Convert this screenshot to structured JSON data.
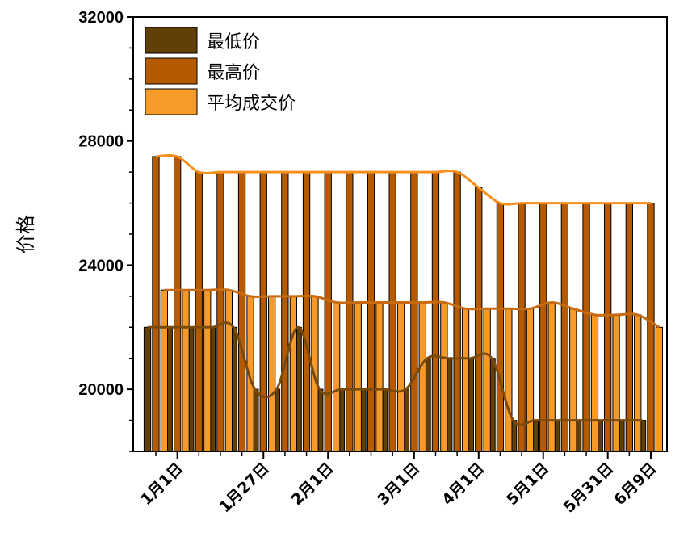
{
  "chart_data": {
    "type": "bar",
    "title": "",
    "xlabel": "",
    "ylabel": "价格",
    "ylim": [
      18000,
      32000
    ],
    "yticks": [
      "20000",
      "24000",
      "28000",
      "32000"
    ],
    "x_tick_labels": [
      {
        "index": 1,
        "label": "1月1日"
      },
      {
        "index": 5,
        "label": "1月27日"
      },
      {
        "index": 8,
        "label": "2月1日"
      },
      {
        "index": 12,
        "label": "3月1日"
      },
      {
        "index": 15,
        "label": "4月1日"
      },
      {
        "index": 18,
        "label": "5月1日"
      },
      {
        "index": 21,
        "label": "5月31日"
      },
      {
        "index": 23,
        "label": "6月9日"
      }
    ],
    "legend_position": "top-left",
    "legend": [
      {
        "name": "最低价",
        "color": "#623f07"
      },
      {
        "name": "最高价",
        "color": "#b65a00"
      },
      {
        "name": "平均成交价",
        "color": "#f79a2a"
      }
    ],
    "series": [
      {
        "name": "最低价",
        "color": "#623f07",
        "values": [
          22000,
          22000,
          22000,
          22000,
          22000,
          20000,
          20000,
          22000,
          20000,
          20000,
          20000,
          20000,
          20000,
          21000,
          21000,
          21000,
          21000,
          19000,
          19000,
          19000,
          19000,
          19000,
          19000,
          19000
        ]
      },
      {
        "name": "最高价",
        "color": "#b65a00",
        "values": [
          27500,
          27500,
          27000,
          27000,
          27000,
          27000,
          27000,
          27000,
          27000,
          27000,
          27000,
          27000,
          27000,
          27000,
          27000,
          26500,
          26000,
          26000,
          26000,
          26000,
          26000,
          26000,
          26000,
          26000
        ]
      },
      {
        "name": "平均成交价",
        "color": "#f79a2a",
        "values": [
          23200,
          23200,
          23200,
          23200,
          23000,
          23000,
          23000,
          23000,
          22800,
          22800,
          22800,
          22800,
          22800,
          22800,
          22600,
          22600,
          22600,
          22600,
          22800,
          22600,
          22400,
          22400,
          22400,
          22000
        ]
      }
    ],
    "grid": false
  }
}
